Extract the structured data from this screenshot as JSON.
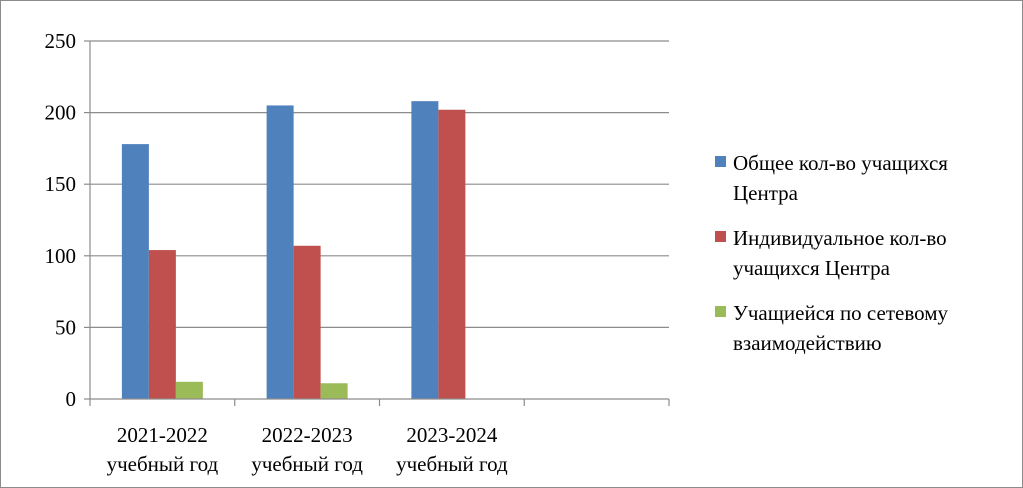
{
  "chart_data": {
    "type": "bar",
    "categories": [
      [
        "2021-2022",
        "учебный год"
      ],
      [
        "2022-2023",
        "учебный год"
      ],
      [
        "2023-2024",
        "учебный год"
      ],
      [
        "",
        ""
      ]
    ],
    "series": [
      {
        "name": [
          "Общее кол-во учащихся",
          "Центра"
        ],
        "color": "#4f81bd",
        "values": [
          178,
          205,
          208,
          null
        ]
      },
      {
        "name": [
          "Индивидуальное кол-во",
          "учащихся Центра"
        ],
        "color": "#c0504d",
        "values": [
          104,
          107,
          202,
          null
        ]
      },
      {
        "name": [
          "Учащиейся по сетевому",
          "взаимодействию"
        ],
        "color": "#9bbb59",
        "values": [
          12,
          11,
          null,
          null
        ]
      }
    ],
    "ylim": [
      0,
      250
    ],
    "yticks": [
      0,
      50,
      100,
      150,
      200,
      250
    ],
    "grid": true,
    "legend": "right"
  }
}
